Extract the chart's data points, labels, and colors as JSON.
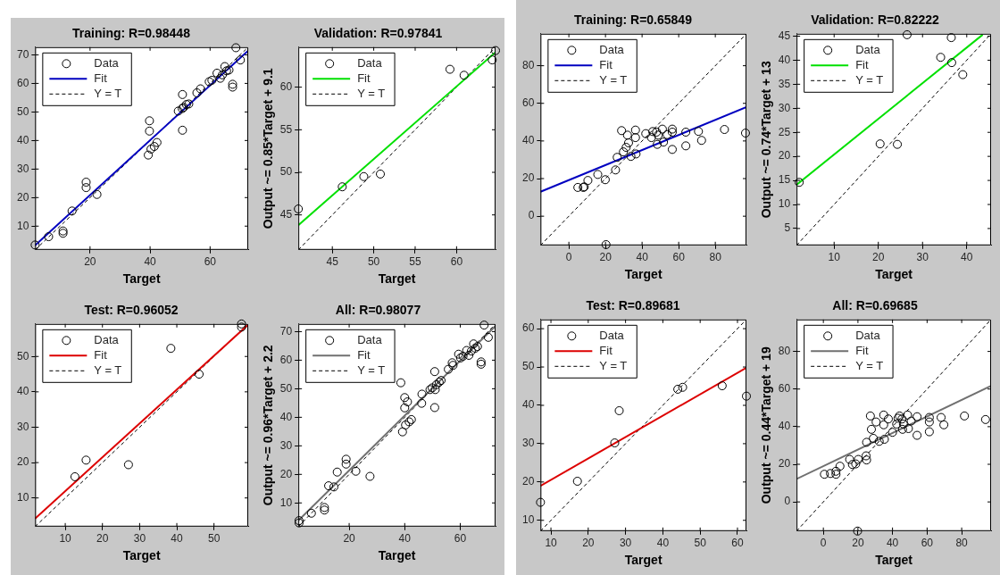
{
  "chart_data": [
    {
      "type": "scatter",
      "title": "Training: R=0.98448",
      "xlabel": "Target",
      "xlim": [
        1.7,
        72.7
      ],
      "ylim": [
        1.7,
        72.7
      ],
      "xticks": [
        20,
        40,
        60
      ],
      "yticks": [
        10,
        20,
        30,
        40,
        50,
        60,
        70
      ],
      "legend": "top left",
      "series": [
        {
          "name": "Data",
          "type": "scatter",
          "marker": "circle",
          "color": "#000000",
          "x": [
            1.7,
            6.2,
            11.0,
            11.0,
            14.0,
            18.7,
            18.7,
            22.3,
            39.4,
            39.8,
            39.8,
            40.3,
            41.4,
            42.3,
            49.4,
            50.7,
            50.8,
            50.8,
            51.2,
            52.1,
            52.9,
            55.6,
            56.8,
            59.7,
            60.6,
            62.3,
            63.4,
            64.1,
            64.9,
            65.5,
            66.3,
            67.5,
            67.5,
            68.6,
            70.1
          ],
          "values": [
            3.4,
            6.3,
            8.3,
            7.5,
            15.3,
            25.4,
            23.5,
            21.1,
            34.9,
            46.9,
            43.3,
            37.0,
            37.9,
            39.3,
            50.3,
            51.2,
            56.1,
            43.6,
            51.6,
            52.6,
            52.8,
            56.7,
            58.1,
            60.6,
            61.1,
            63.6,
            61.8,
            63.0,
            65.9,
            64.4,
            64.7,
            59.7,
            58.7,
            72.5,
            68.2
          ]
        },
        {
          "name": "Fit",
          "type": "line",
          "color": "#0000c0",
          "x": [
            1.7,
            72.7
          ],
          "values": [
            3.3,
            71.5
          ]
        },
        {
          "name": "Y = T",
          "type": "line",
          "line_style": "dashed",
          "color": "#000000",
          "x": [
            1.7,
            72.7
          ],
          "values": [
            1.7,
            72.7
          ]
        }
      ]
    },
    {
      "type": "scatter",
      "title": "Validation: R=0.97841",
      "xlabel": "Target",
      "ylabel": "Output ~= 0.85*Target + 9.1",
      "xlim": [
        40.9,
        64.7
      ],
      "ylim": [
        40.9,
        64.7
      ],
      "xticks": [
        45,
        50,
        55,
        60
      ],
      "yticks": [
        45,
        50,
        55,
        60
      ],
      "legend": "top left",
      "series": [
        {
          "name": "Data",
          "type": "scatter",
          "marker": "circle",
          "color": "#000000",
          "x": [
            40.9,
            46.2,
            48.8,
            50.8,
            59.2,
            60.9,
            64.3,
            64.7
          ],
          "values": [
            45.7,
            48.3,
            49.5,
            49.8,
            62.1,
            61.4,
            63.2,
            64.3
          ]
        },
        {
          "name": "Fit",
          "type": "line",
          "color": "#00e000",
          "x": [
            40.9,
            64.7
          ],
          "values": [
            43.8,
            64.1
          ]
        },
        {
          "name": "Y = T",
          "type": "line",
          "line_style": "dashed",
          "color": "#000000",
          "x": [
            40.9,
            64.7
          ],
          "values": [
            40.9,
            64.7
          ]
        }
      ]
    },
    {
      "type": "scatter",
      "title": "Test: R=0.96052",
      "xlabel": "Target",
      "xlim": [
        1.9,
        59.2
      ],
      "ylim": [
        1.9,
        59.2
      ],
      "xticks": [
        10,
        20,
        30,
        40,
        50
      ],
      "yticks": [
        10,
        20,
        30,
        40,
        50
      ],
      "legend": "top left",
      "series": [
        {
          "name": "Data",
          "type": "scatter",
          "marker": "circle",
          "color": "#000000",
          "x": [
            12.6,
            15.6,
            27.0,
            38.4,
            46.0,
            57.4,
            57.4
          ],
          "values": [
            16.0,
            20.7,
            19.4,
            52.3,
            45.0,
            59.2,
            58.3
          ]
        },
        {
          "name": "Fit",
          "type": "line",
          "color": "#dd0000",
          "x": [
            1.9,
            59.2
          ],
          "values": [
            4.2,
            59.0
          ]
        },
        {
          "name": "Y = T",
          "type": "line",
          "line_style": "dashed",
          "color": "#000000",
          "x": [
            1.9,
            59.2
          ],
          "values": [
            1.9,
            59.2
          ]
        }
      ]
    },
    {
      "type": "scatter",
      "title": "All: R=0.98077",
      "xlabel": "Target",
      "ylabel": "Output ~= 0.96*Target + 2.2",
      "xlim": [
        1.7,
        72.7
      ],
      "ylim": [
        1.7,
        72.7
      ],
      "xticks": [
        20,
        40,
        60
      ],
      "yticks": [
        10,
        20,
        30,
        40,
        50,
        60,
        70
      ],
      "legend": "top left",
      "series": [
        {
          "name": "Data",
          "type": "scatter",
          "marker": "circle",
          "color": "#000000",
          "x": [
            1.95,
            1.95,
            6.4,
            11.1,
            11.1,
            12.6,
            14.5,
            15.7,
            18.9,
            18.9,
            22.4,
            27.5,
            38.6,
            39.2,
            40.0,
            40.0,
            40.3,
            41.0,
            41.6,
            42.4,
            46.2,
            46.1,
            49.1,
            49.9,
            50.8,
            50.8,
            51.0,
            51.4,
            52.4,
            53.1,
            55.7,
            57.1,
            57.4,
            59.4,
            60.1,
            61.0,
            62.3,
            63.1,
            64.0,
            64.8,
            65.4,
            66.2,
            67.5,
            67.5,
            68.6,
            70.1
          ],
          "values": [
            3.8,
            3.0,
            6.4,
            8.4,
            7.5,
            16.0,
            15.6,
            20.8,
            25.3,
            23.6,
            21.1,
            19.3,
            52.1,
            34.9,
            46.9,
            43.3,
            37.3,
            45.4,
            38.4,
            39.2,
            48.1,
            44.9,
            49.7,
            50.3,
            56.0,
            43.4,
            49.7,
            51.4,
            52.3,
            52.9,
            56.8,
            59.1,
            58.2,
            62.1,
            60.8,
            61.4,
            63.4,
            61.7,
            63.2,
            65.7,
            64.2,
            64.8,
            59.4,
            58.6,
            72.3,
            68.0
          ]
        },
        {
          "name": "Fit",
          "type": "line",
          "color": "#707070",
          "x": [
            1.7,
            72.7
          ],
          "values": [
            3.8,
            72.0
          ]
        },
        {
          "name": "Y = T",
          "type": "line",
          "line_style": "dashed",
          "color": "#000000",
          "x": [
            1.7,
            72.7
          ],
          "values": [
            1.7,
            72.7
          ]
        }
      ]
    },
    {
      "type": "scatter",
      "title": "Training: R=0.65849",
      "xlabel": "Target",
      "xlim": [
        -15.5,
        97
      ],
      "ylim": [
        -15.5,
        97
      ],
      "xticks": [
        0,
        20,
        40,
        60,
        80
      ],
      "yticks": [
        0,
        20,
        40,
        60,
        80
      ],
      "legend": "top left",
      "series": [
        {
          "name": "Data",
          "type": "scatter",
          "marker": "circle",
          "color": "#000000",
          "x": [
            4.9,
            7.9,
            8.4,
            10.4,
            15.8,
            19.9,
            20.3,
            25.5,
            26.4,
            28.8,
            29.8,
            31.3,
            32.0,
            32.6,
            33.9,
            36.4,
            36.4,
            36.7,
            42.0,
            45.1,
            45.8,
            47.9,
            48.3,
            48.8,
            51.1,
            51.7,
            53.7,
            56.5,
            56.5,
            56.5,
            63.9,
            63.9,
            70.8,
            72.5,
            85.0,
            96.5
          ],
          "values": [
            15.3,
            15.3,
            15.6,
            19.0,
            22.2,
            19.4,
            -15.1,
            24.6,
            31.3,
            45.5,
            34.2,
            36.6,
            43.1,
            39.0,
            31.8,
            45.8,
            41.8,
            33.1,
            43.9,
            41.8,
            45.0,
            44.7,
            38.2,
            43.1,
            46.3,
            39.4,
            43.4,
            46.3,
            44.7,
            35.5,
            44.7,
            37.4,
            45.1,
            40.3,
            46.1,
            44.2
          ]
        },
        {
          "name": "Fit",
          "type": "line",
          "color": "#0000c0",
          "x": [
            -15.5,
            97
          ],
          "values": [
            13.0,
            58.0
          ]
        },
        {
          "name": "Y = T",
          "type": "line",
          "line_style": "dashed",
          "color": "#000000",
          "x": [
            -15.5,
            97
          ],
          "values": [
            -15.5,
            97
          ]
        }
      ]
    },
    {
      "type": "scatter",
      "title": "Validation: R=0.82222",
      "xlabel": "Target",
      "ylabel": "Output ~= 0.74*Target + 13",
      "xlim": [
        1.5,
        45.5
      ],
      "ylim": [
        1.5,
        45.5
      ],
      "xticks": [
        10,
        20,
        30,
        40
      ],
      "yticks": [
        5,
        10,
        15,
        20,
        25,
        30,
        35,
        40,
        45
      ],
      "legend": "top left",
      "series": [
        {
          "name": "Data",
          "type": "scatter",
          "marker": "circle",
          "color": "#000000",
          "x": [
            2.1,
            20.4,
            24.3,
            26.5,
            34.1,
            36.5,
            36.6,
            39.1
          ],
          "values": [
            14.6,
            22.6,
            22.5,
            45.3,
            40.6,
            44.7,
            39.5,
            37.0
          ]
        },
        {
          "name": "Fit",
          "type": "line",
          "color": "#00e000",
          "x": [
            1.5,
            43.6
          ],
          "values": [
            14.1,
            45.3
          ]
        },
        {
          "name": "Y = T",
          "type": "line",
          "line_style": "dashed",
          "color": "#000000",
          "x": [
            1.5,
            45.5
          ],
          "values": [
            1.5,
            45.5
          ]
        }
      ]
    },
    {
      "type": "scatter",
      "title": "Test: R=0.89681",
      "xlabel": "Target",
      "xlim": [
        7.2,
        62.4
      ],
      "ylim": [
        7.2,
        62.4
      ],
      "xticks": [
        10,
        20,
        30,
        40,
        50,
        60
      ],
      "yticks": [
        10,
        20,
        30,
        40,
        50,
        60
      ],
      "legend": "top left",
      "series": [
        {
          "name": "Data",
          "type": "scatter",
          "marker": "circle",
          "color": "#000000",
          "x": [
            7.2,
            17.1,
            27.1,
            28.3,
            44.0,
            45.3,
            55.9,
            62.4
          ],
          "values": [
            14.7,
            20.2,
            30.2,
            38.6,
            44.2,
            44.7,
            45.1,
            42.4
          ]
        },
        {
          "name": "Fit",
          "type": "line",
          "color": "#dd0000",
          "x": [
            7.2,
            62.4
          ],
          "values": [
            19.0,
            49.8
          ]
        },
        {
          "name": "Y = T",
          "type": "line",
          "line_style": "dashed",
          "color": "#000000",
          "x": [
            7.2,
            62.4
          ],
          "values": [
            7.2,
            62.4
          ]
        }
      ]
    },
    {
      "type": "scatter",
      "title": "All: R=0.69685",
      "xlabel": "Target",
      "ylabel": "Output ~= 0.44*Target + 19",
      "xlim": [
        -15.5,
        97
      ],
      "ylim": [
        -15.5,
        97
      ],
      "xticks": [
        0,
        20,
        40,
        60,
        80
      ],
      "yticks": [
        0,
        20,
        40,
        60,
        80
      ],
      "legend": "top left",
      "series": [
        {
          "name": "Data",
          "type": "scatter",
          "marker": "circle",
          "color": "#000000",
          "x": [
            0.6,
            4.1,
            7.3,
            7.3,
            9.6,
            15.2,
            16.8,
            18.7,
            20.2,
            19.8,
            24.7,
            25.0,
            25.0,
            27.2,
            27.8,
            28.9,
            30.5,
            32.3,
            34.9,
            34.9,
            35.3,
            37.6,
            40.0,
            42.4,
            43.2,
            44.0,
            45.5,
            45.8,
            46.3,
            48.7,
            49.2,
            50.8,
            54.2,
            54.2,
            61.3,
            61.3,
            61.3,
            68.1,
            69.7,
            81.6,
            93.8
          ],
          "values": [
            14.7,
            15.1,
            16.3,
            14.7,
            19.0,
            22.6,
            19.9,
            20.2,
            22.6,
            -15.5,
            24.5,
            22.3,
            31.7,
            45.7,
            38.6,
            33.8,
            42.5,
            32.2,
            46.2,
            41.0,
            33.3,
            44.1,
            37.0,
            41.4,
            44.5,
            45.7,
            44.1,
            38.6,
            41.4,
            46.2,
            39.0,
            43.0,
            45.3,
            35.4,
            44.9,
            42.5,
            37.3,
            44.9,
            41.0,
            45.7,
            43.8
          ]
        },
        {
          "name": "Fit",
          "type": "line",
          "color": "#707070",
          "x": [
            -15.5,
            97
          ],
          "values": [
            12.2,
            61.7
          ]
        },
        {
          "name": "Y = T",
          "type": "line",
          "line_style": "dashed",
          "color": "#000000",
          "x": [
            -15.5,
            97
          ],
          "values": [
            -15.5,
            97
          ]
        }
      ]
    }
  ]
}
